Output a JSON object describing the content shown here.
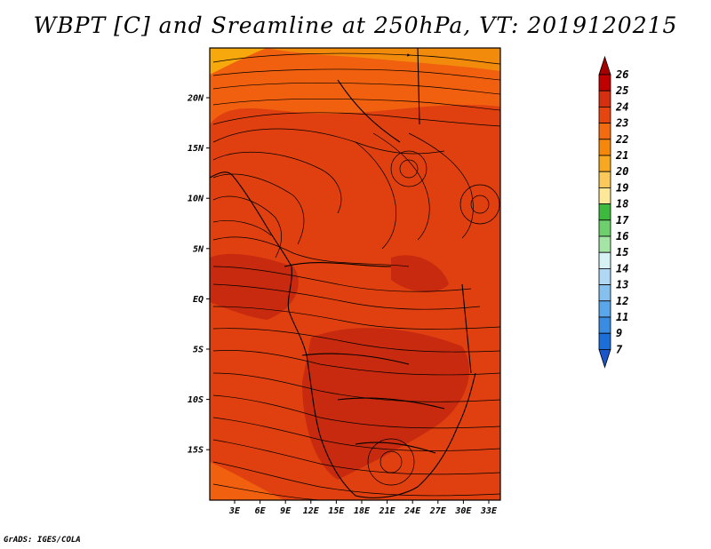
{
  "title": "WBPT [C] and Sreamline at 250hPa, VT: 2019120215",
  "footer": "GrADS: IGES/COLA",
  "map": {
    "lat_ticks": [
      "20N",
      "15N",
      "10N",
      "5N",
      "EQ",
      "5S",
      "10S",
      "15S"
    ],
    "lon_ticks": [
      "3E",
      "6E",
      "9E",
      "12E",
      "15E",
      "18E",
      "21E",
      "24E",
      "27E",
      "30E",
      "33E"
    ],
    "field_colors": {
      "dark": "#c82a0f",
      "mid": "#e0400f",
      "light": "#f0600f",
      "orange": "#f28a0c",
      "amber": "#f6a80c"
    }
  },
  "colorbar": {
    "levels": [
      "26",
      "25",
      "24",
      "23",
      "22",
      "21",
      "20",
      "19",
      "18",
      "17",
      "16",
      "15",
      "14",
      "13",
      "12",
      "11",
      "9",
      "7"
    ],
    "colors": [
      "#a50000",
      "#c00000",
      "#d42f0f",
      "#e6450f",
      "#f36a0f",
      "#f5880b",
      "#f7a820",
      "#fac95a",
      "#fde89a",
      "#3dba3d",
      "#6dd06d",
      "#a4e4a4",
      "#d6f2f4",
      "#b0d8f5",
      "#86c0ef",
      "#5aa6ea",
      "#3a8ce3",
      "#1a6fd8",
      "#1a56c9"
    ]
  }
}
